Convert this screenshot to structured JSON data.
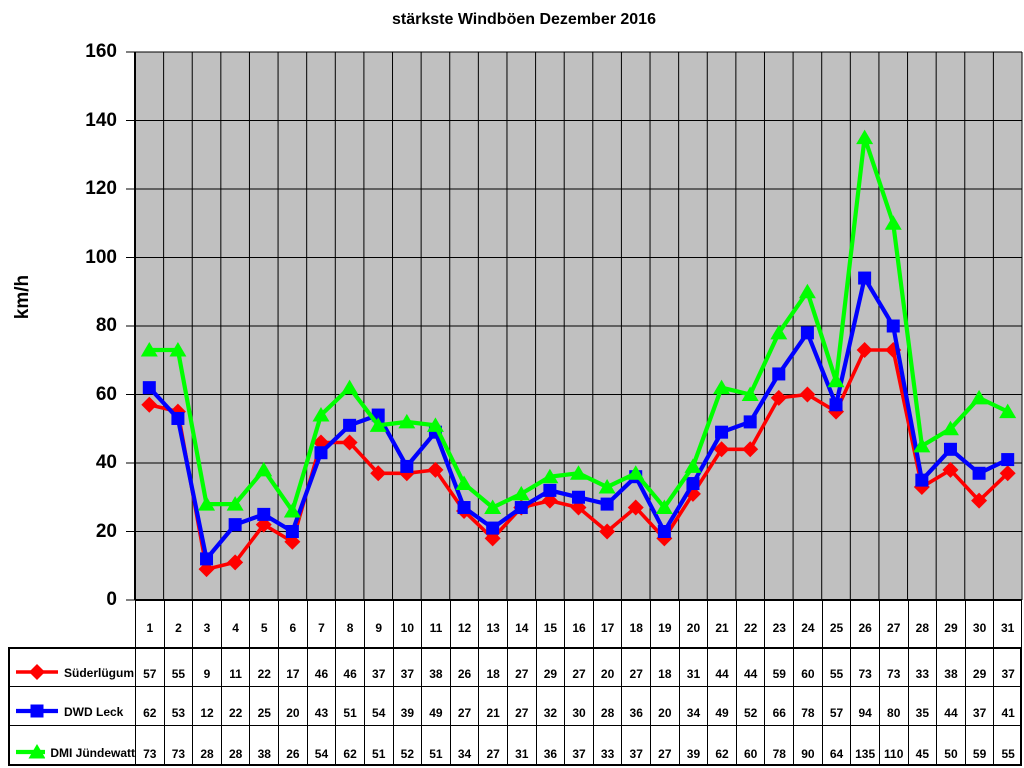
{
  "title": "stärkste Windböen Dezember 2016",
  "chart_data": {
    "type": "line",
    "title": "stärkste Windböen Dezember 2016",
    "xlabel": "",
    "ylabel": "km/h",
    "ylim": [
      0,
      160
    ],
    "ytick_step": 20,
    "ytick_labels": [
      "160",
      "140",
      "120",
      "100",
      "80",
      "60",
      "40",
      "20",
      "0"
    ],
    "grid": true,
    "plot_background": "#c0c0c0",
    "axis_color": "#000000",
    "legend_position": "bottom-table",
    "categories": [
      "1",
      "2",
      "3",
      "4",
      "5",
      "6",
      "7",
      "8",
      "9",
      "10",
      "11",
      "12",
      "13",
      "14",
      "15",
      "16",
      "17",
      "18",
      "19",
      "20",
      "21",
      "22",
      "23",
      "24",
      "25",
      "26",
      "27",
      "28",
      "29",
      "30",
      "31"
    ],
    "series": [
      {
        "name": "Süderlügum",
        "color": "#ff0000",
        "marker": "diamond",
        "values": [
          57,
          55,
          9,
          11,
          22,
          17,
          46,
          46,
          37,
          37,
          38,
          26,
          18,
          27,
          29,
          27,
          20,
          27,
          18,
          31,
          44,
          44,
          59,
          60,
          55,
          73,
          73,
          33,
          38,
          29,
          37
        ]
      },
      {
        "name": "DWD Leck",
        "color": "#0000ff",
        "marker": "square",
        "values": [
          62,
          53,
          12,
          22,
          25,
          20,
          43,
          51,
          54,
          39,
          49,
          27,
          21,
          27,
          32,
          30,
          28,
          36,
          20,
          34,
          49,
          52,
          66,
          78,
          57,
          94,
          80,
          35,
          44,
          37,
          41
        ]
      },
      {
        "name": "DMI Jündewatt",
        "color": "#00ff00",
        "marker": "triangle",
        "values": [
          73,
          73,
          28,
          28,
          38,
          26,
          54,
          62,
          51,
          52,
          51,
          34,
          27,
          31,
          36,
          37,
          33,
          37,
          27,
          39,
          62,
          60,
          78,
          90,
          64,
          135,
          110,
          45,
          50,
          59,
          55
        ]
      }
    ]
  }
}
